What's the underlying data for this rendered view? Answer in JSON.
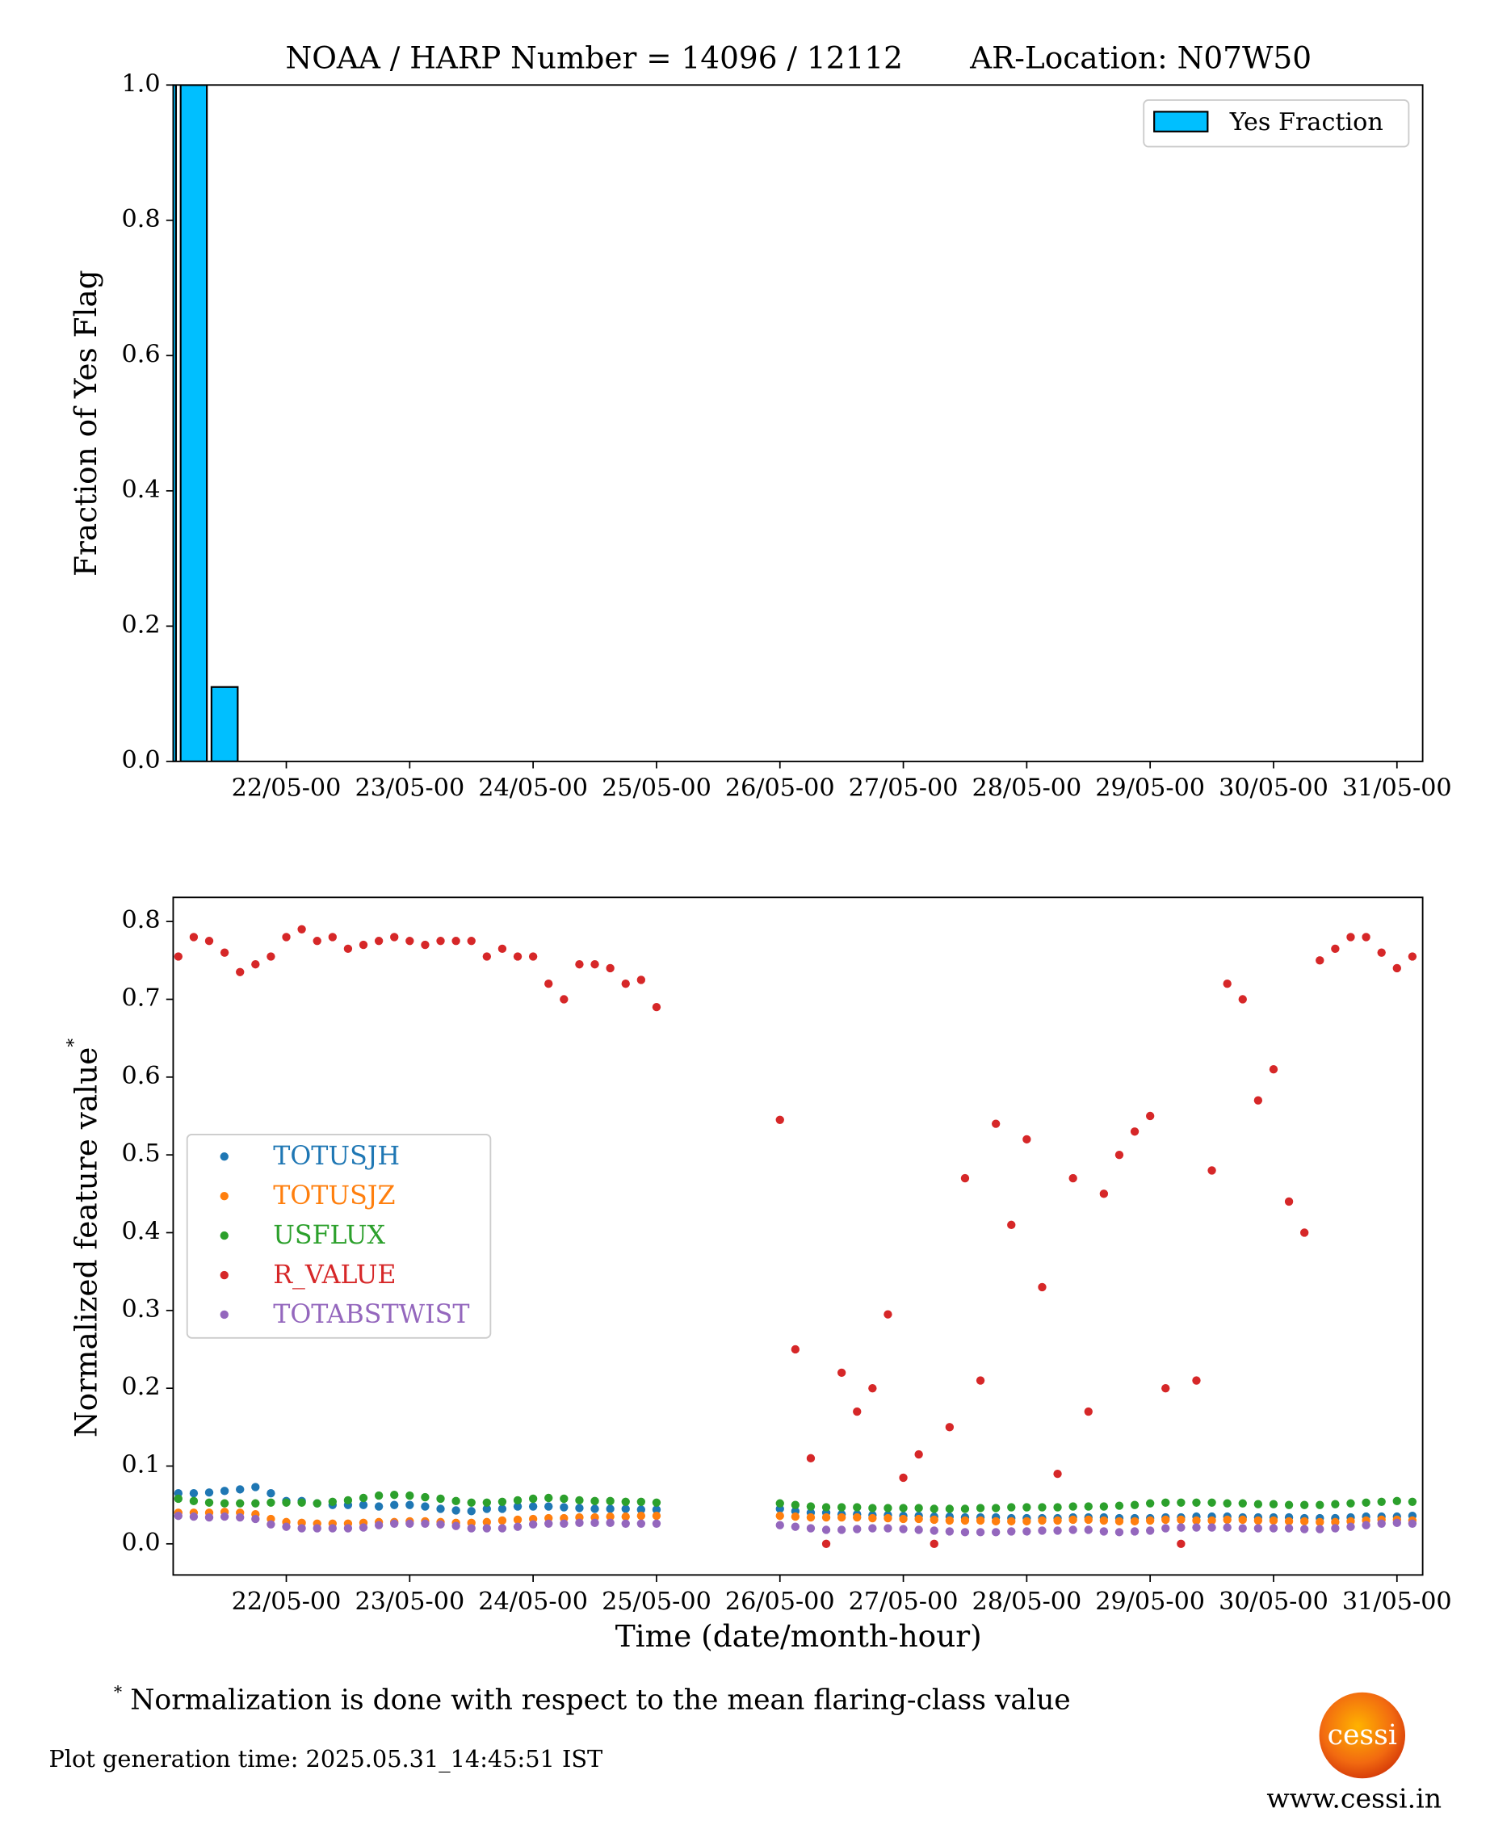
{
  "chart_data": [
    {
      "type": "bar",
      "title": "NOAA / HARP Number = 14096 / 12112       AR-Location: N07W50",
      "ylabel": "Fraction of Yes Flag",
      "x": [
        "21/05-00",
        "21/05-06",
        "21/05-12"
      ],
      "series": [
        {
          "name": "Yes Fraction",
          "color": "#00bfff",
          "values": [
            1.0,
            1.0,
            0.11
          ]
        }
      ],
      "xlim": [
        "21/05-02",
        "31/05-05"
      ],
      "xticks": [
        "22/05-00",
        "23/05-00",
        "24/05-00",
        "25/05-00",
        "26/05-00",
        "27/05-00",
        "28/05-00",
        "29/05-00",
        "30/05-00",
        "31/05-00"
      ],
      "ylim": [
        0,
        1
      ],
      "yticks": [
        {
          "value": 0,
          "label": "0.0"
        },
        {
          "value": 0.2,
          "label": "0.2"
        },
        {
          "value": 0.4,
          "label": "0.4"
        },
        {
          "value": 0.6,
          "label": "0.6"
        },
        {
          "value": 0.8,
          "label": "0.8"
        },
        {
          "value": 1,
          "label": "1.0"
        }
      ],
      "legend": "upper right"
    },
    {
      "type": "scatter",
      "xlabel": "Time (date/month-hour)",
      "ylabel": "Normalized feature value",
      "ylabel_mark": "*",
      "x": [
        "21/05-03",
        "21/05-06",
        "21/05-09",
        "21/05-12",
        "21/05-15",
        "21/05-18",
        "21/05-21",
        "22/05-00",
        "22/05-03",
        "22/05-06",
        "22/05-09",
        "22/05-12",
        "22/05-15",
        "22/05-18",
        "22/05-21",
        "23/05-00",
        "23/05-03",
        "23/05-06",
        "23/05-09",
        "23/05-12",
        "23/05-15",
        "23/05-18",
        "23/05-21",
        "24/05-00",
        "24/05-03",
        "24/05-06",
        "24/05-09",
        "24/05-12",
        "24/05-15",
        "24/05-18",
        "24/05-21",
        "25/05-00",
        "26/05-00",
        "26/05-03",
        "26/05-06",
        "26/05-09",
        "26/05-12",
        "26/05-15",
        "26/05-18",
        "26/05-21",
        "27/05-00",
        "27/05-03",
        "27/05-06",
        "27/05-09",
        "27/05-12",
        "27/05-15",
        "27/05-18",
        "27/05-21",
        "28/05-00",
        "28/05-03",
        "28/05-06",
        "28/05-09",
        "28/05-12",
        "28/05-15",
        "28/05-18",
        "28/05-21",
        "29/05-00",
        "29/05-03",
        "29/05-06",
        "29/05-09",
        "29/05-12",
        "29/05-15",
        "29/05-18",
        "29/05-21",
        "30/05-00",
        "30/05-03",
        "30/05-06",
        "30/05-09",
        "30/05-12",
        "30/05-15",
        "30/05-18",
        "30/05-21",
        "31/05-00",
        "31/05-03"
      ],
      "series": [
        {
          "name": "TOTUSJH",
          "color": "#1f77b4",
          "values": [
            0.065,
            0.065,
            0.066,
            0.068,
            0.07,
            0.073,
            0.065,
            0.055,
            0.055,
            0.052,
            0.05,
            0.05,
            0.05,
            0.048,
            0.05,
            0.05,
            0.048,
            0.045,
            0.043,
            0.042,
            0.045,
            0.045,
            0.048,
            0.048,
            0.048,
            0.047,
            0.046,
            0.045,
            0.045,
            0.045,
            0.044,
            0.044,
            0.045,
            0.042,
            0.04,
            0.04,
            0.038,
            0.038,
            0.037,
            0.037,
            0.036,
            0.036,
            0.035,
            0.035,
            0.034,
            0.034,
            0.034,
            0.033,
            0.033,
            0.033,
            0.033,
            0.034,
            0.034,
            0.034,
            0.033,
            0.033,
            0.033,
            0.034,
            0.034,
            0.035,
            0.035,
            0.035,
            0.034,
            0.034,
            0.034,
            0.034,
            0.033,
            0.033,
            0.033,
            0.034,
            0.035,
            0.035,
            0.035,
            0.036
          ]
        },
        {
          "name": "TOTUSJZ",
          "color": "#ff7f0e",
          "values": [
            0.04,
            0.04,
            0.04,
            0.041,
            0.04,
            0.038,
            0.032,
            0.028,
            0.027,
            0.026,
            0.026,
            0.026,
            0.027,
            0.028,
            0.028,
            0.029,
            0.029,
            0.028,
            0.027,
            0.027,
            0.028,
            0.03,
            0.031,
            0.032,
            0.033,
            0.033,
            0.034,
            0.034,
            0.035,
            0.035,
            0.036,
            0.036,
            0.036,
            0.035,
            0.034,
            0.034,
            0.034,
            0.034,
            0.033,
            0.033,
            0.032,
            0.032,
            0.031,
            0.03,
            0.03,
            0.03,
            0.029,
            0.029,
            0.029,
            0.03,
            0.03,
            0.031,
            0.031,
            0.03,
            0.029,
            0.029,
            0.03,
            0.031,
            0.031,
            0.03,
            0.03,
            0.031,
            0.031,
            0.03,
            0.03,
            0.029,
            0.029,
            0.028,
            0.028,
            0.029,
            0.03,
            0.031,
            0.031,
            0.03
          ]
        },
        {
          "name": "USFLUX",
          "color": "#2ca02c",
          "values": [
            0.058,
            0.055,
            0.053,
            0.052,
            0.052,
            0.052,
            0.053,
            0.053,
            0.053,
            0.052,
            0.054,
            0.056,
            0.059,
            0.062,
            0.063,
            0.062,
            0.06,
            0.058,
            0.055,
            0.053,
            0.053,
            0.054,
            0.056,
            0.058,
            0.059,
            0.058,
            0.056,
            0.055,
            0.055,
            0.054,
            0.054,
            0.053,
            0.052,
            0.05,
            0.048,
            0.047,
            0.047,
            0.047,
            0.046,
            0.046,
            0.046,
            0.046,
            0.045,
            0.045,
            0.045,
            0.046,
            0.046,
            0.047,
            0.047,
            0.047,
            0.047,
            0.048,
            0.048,
            0.048,
            0.049,
            0.05,
            0.052,
            0.053,
            0.053,
            0.053,
            0.053,
            0.052,
            0.052,
            0.051,
            0.051,
            0.05,
            0.05,
            0.05,
            0.051,
            0.052,
            0.053,
            0.054,
            0.055,
            0.054
          ]
        },
        {
          "name": "R_VALUE",
          "color": "#d62728",
          "values": [
            0.755,
            0.78,
            0.775,
            0.76,
            0.735,
            0.745,
            0.755,
            0.78,
            0.79,
            0.775,
            0.78,
            0.765,
            0.77,
            0.775,
            0.78,
            0.775,
            0.77,
            0.775,
            0.775,
            0.775,
            0.755,
            0.765,
            0.755,
            0.755,
            0.72,
            0.7,
            0.745,
            0.745,
            0.74,
            0.72,
            0.725,
            0.69,
            0.545,
            0.25,
            0.11,
            0.0,
            0.22,
            0.17,
            0.2,
            0.295,
            0.085,
            0.115,
            0.0,
            0.15,
            0.47,
            0.21,
            0.54,
            0.41,
            0.52,
            0.33,
            0.09,
            0.47,
            0.17,
            0.45,
            0.5,
            0.53,
            0.55,
            0.2,
            0.0,
            0.21,
            0.48,
            0.72,
            0.7,
            0.57,
            0.61,
            0.44,
            0.4,
            0.75,
            0.765,
            0.78,
            0.78,
            0.76,
            0.74,
            0.755
          ]
        },
        {
          "name": "TOTABSTWIST",
          "color": "#9467bd",
          "values": [
            0.036,
            0.035,
            0.034,
            0.035,
            0.034,
            0.032,
            0.025,
            0.022,
            0.02,
            0.02,
            0.02,
            0.02,
            0.021,
            0.024,
            0.026,
            0.026,
            0.026,
            0.025,
            0.023,
            0.02,
            0.02,
            0.02,
            0.022,
            0.025,
            0.026,
            0.026,
            0.027,
            0.027,
            0.027,
            0.026,
            0.026,
            0.026,
            0.024,
            0.022,
            0.02,
            0.018,
            0.018,
            0.019,
            0.02,
            0.02,
            0.019,
            0.018,
            0.017,
            0.016,
            0.015,
            0.015,
            0.015,
            0.016,
            0.016,
            0.017,
            0.017,
            0.018,
            0.018,
            0.016,
            0.015,
            0.016,
            0.017,
            0.02,
            0.021,
            0.021,
            0.021,
            0.021,
            0.02,
            0.02,
            0.02,
            0.02,
            0.019,
            0.019,
            0.02,
            0.022,
            0.024,
            0.026,
            0.027,
            0.026
          ]
        }
      ],
      "xlim": [
        "21/05-02",
        "31/05-05"
      ],
      "xticks": [
        "22/05-00",
        "23/05-00",
        "24/05-00",
        "25/05-00",
        "26/05-00",
        "27/05-00",
        "28/05-00",
        "29/05-00",
        "30/05-00",
        "31/05-00"
      ],
      "ylim": [
        -0.04,
        0.831
      ],
      "yticks": [
        {
          "value": 0,
          "label": "0.0"
        },
        {
          "value": 0.1,
          "label": "0.1"
        },
        {
          "value": 0.2,
          "label": "0.2"
        },
        {
          "value": 0.3,
          "label": "0.3"
        },
        {
          "value": 0.4,
          "label": "0.4"
        },
        {
          "value": 0.5,
          "label": "0.5"
        },
        {
          "value": 0.6,
          "label": "0.6"
        },
        {
          "value": 0.7,
          "label": "0.7"
        },
        {
          "value": 0.8,
          "label": "0.8"
        }
      ],
      "legend": "center left"
    }
  ],
  "footnote": {
    "mark": "*",
    "text": "Normalization is done with respect to the mean flaring-class value"
  },
  "generation_time": "Plot generation time: 2025.05.31_14:45:51 IST",
  "logo_text": "cessi",
  "website": "www.cessi.in"
}
